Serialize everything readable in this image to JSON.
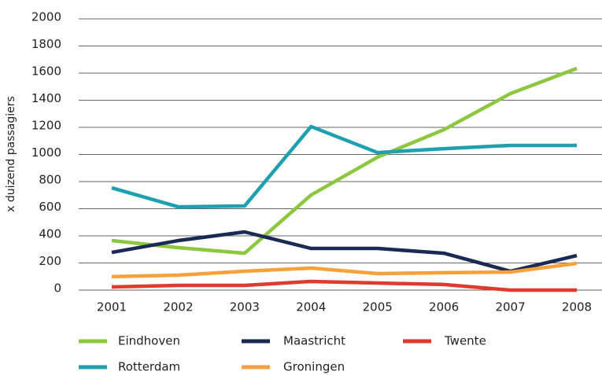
{
  "chart_data": {
    "type": "line",
    "y_label": "x duizend passagiers",
    "categories": [
      "2001",
      "2002",
      "2003",
      "2004",
      "2005",
      "2006",
      "2007",
      "2008"
    ],
    "series": [
      {
        "name": "Eindhoven",
        "color": "#8dc63f",
        "values": [
          365,
          313,
          272,
          701,
          980,
          1183,
          1449,
          1635
        ]
      },
      {
        "name": "Maastricht",
        "color": "#1b2a55",
        "values": [
          278,
          365,
          429,
          307,
          307,
          272,
          139,
          255
        ]
      },
      {
        "name": "Twente",
        "color": "#e03a2e",
        "values": [
          23,
          35,
          35,
          64,
          52,
          41,
          0,
          0
        ]
      },
      {
        "name": "Rotterdam",
        "color": "#1fa0b0",
        "values": [
          754,
          614,
          620,
          1206,
          1014,
          1043,
          1067,
          1067
        ]
      },
      {
        "name": "Groningen",
        "color": "#f7a13a",
        "values": [
          99,
          110,
          139,
          162,
          122,
          128,
          133,
          197
        ]
      }
    ],
    "ylim": [
      0,
      2000
    ],
    "yticks": [
      0,
      200,
      400,
      600,
      800,
      1000,
      1200,
      1400,
      1600,
      1800,
      2000
    ],
    "grid": true
  }
}
